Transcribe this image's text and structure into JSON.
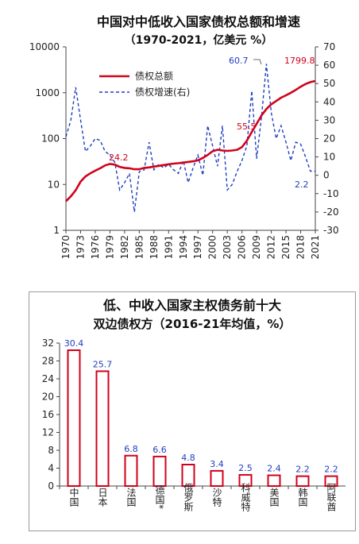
{
  "chart_data": [
    {
      "type": "line",
      "title": "中国对中低收入国家债权总额和增速",
      "subtitle": "（1970-2021，亿美元 %）",
      "x_ticks": [
        "1970",
        "1973",
        "1976",
        "1979",
        "1982",
        "1985",
        "1988",
        "1991",
        "1994",
        "1997",
        "2000",
        "2003",
        "2006",
        "2009",
        "2012",
        "2015",
        "2018",
        "2021"
      ],
      "xlim": [
        1970,
        2021
      ],
      "y_left": {
        "scale": "log",
        "ticks": [
          "1",
          "10",
          "100",
          "1000",
          "10000"
        ],
        "ylim": [
          1,
          10000
        ]
      },
      "y_right": {
        "ticks": [
          "-30",
          "-20",
          "-10",
          "0",
          "10",
          "20",
          "30",
          "40",
          "50",
          "60",
          "70"
        ],
        "ylim": [
          -30,
          70
        ]
      },
      "series": [
        {
          "name": "债权总额",
          "axis": "left",
          "color": "#d0021b",
          "x": [
            1970,
            1971,
            1972,
            1973,
            1974,
            1975,
            1976,
            1977,
            1978,
            1979,
            1980,
            1981,
            1982,
            1983,
            1984,
            1985,
            1986,
            1987,
            1988,
            1989,
            1990,
            1991,
            1992,
            1993,
            1994,
            1995,
            1996,
            1997,
            1998,
            1999,
            2000,
            2001,
            2002,
            2003,
            2004,
            2005,
            2006,
            2007,
            2008,
            2009,
            2010,
            2011,
            2012,
            2013,
            2014,
            2015,
            2016,
            2017,
            2018,
            2019,
            2020,
            2021
          ],
          "values": [
            4.3,
            5.5,
            7.5,
            11.5,
            15,
            17.5,
            20,
            22.5,
            26,
            28,
            27,
            24.2,
            23,
            22.5,
            21.5,
            21.5,
            23,
            23.5,
            24.5,
            25.5,
            26.5,
            27.5,
            28.5,
            29,
            30,
            31,
            32,
            33.5,
            38,
            44,
            53,
            57,
            55,
            54,
            55,
            57,
            65,
            90,
            140,
            210,
            320,
            440,
            560,
            660,
            780,
            880,
            1000,
            1150,
            1350,
            1550,
            1700,
            1799.8
          ]
        },
        {
          "name": "债权增速(右)",
          "axis": "right",
          "color": "#1f3fbf",
          "x": [
            1970,
            1971,
            1972,
            1973,
            1974,
            1975,
            1976,
            1977,
            1978,
            1979,
            1980,
            1981,
            1982,
            1983,
            1984,
            1985,
            1986,
            1987,
            1988,
            1989,
            1990,
            1991,
            1992,
            1993,
            1994,
            1995,
            1996,
            1997,
            1998,
            1999,
            2000,
            2001,
            2002,
            2003,
            2004,
            2005,
            2006,
            2007,
            2008,
            2009,
            2010,
            2011,
            2012,
            2013,
            2014,
            2015,
            2016,
            2017,
            2018,
            2019,
            2020,
            2021
          ],
          "values": [
            21,
            30,
            48,
            30,
            13,
            16,
            20,
            19,
            13,
            11,
            7,
            -8,
            -4,
            1,
            -20,
            2,
            3,
            18,
            3,
            6,
            4,
            6,
            3,
            1,
            8,
            -4,
            4,
            11,
            0,
            27,
            16,
            5,
            27,
            -8,
            -5,
            2,
            8,
            16,
            46,
            9,
            32,
            60.7,
            34,
            20,
            27,
            18,
            8,
            18,
            17,
            10,
            2.2,
            2.2
          ]
        }
      ],
      "annotations": [
        "24.2",
        "1799.8",
        "60.7",
        "55.5",
        "2.2"
      ],
      "legend": "top-left"
    },
    {
      "type": "bar",
      "title": "低、中收入国家主权债务前十大",
      "subtitle": "双边债权方（2016-21年均值，%）",
      "categories": [
        "中国",
        "日本",
        "法国",
        "德国*",
        "俄罗斯",
        "沙特",
        "科威特",
        "美国",
        "韩国",
        "阿联酋"
      ],
      "values": [
        30.4,
        25.7,
        6.8,
        6.6,
        4.8,
        3.4,
        2.5,
        2.4,
        2.2,
        2.2
      ],
      "value_labels": [
        "30.4",
        "25.7",
        "6.8",
        "6.6",
        "4.8",
        "3.4",
        "2.5",
        "2.4",
        "2.2",
        "2.2"
      ],
      "y_ticks": [
        "0",
        "4",
        "8",
        "12",
        "16",
        "20",
        "24",
        "28",
        "32"
      ],
      "ylim": [
        0,
        32
      ],
      "bar_color": "#d0021b",
      "label_color": "#1f3fbf"
    }
  ]
}
